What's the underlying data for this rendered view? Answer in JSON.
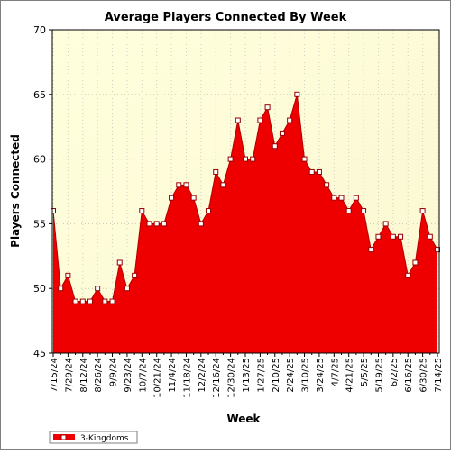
{
  "chart_data": {
    "type": "area",
    "title": "Average Players Connected By Week",
    "xlabel": "Week",
    "ylabel": "Players Connected",
    "ylim": [
      45,
      70
    ],
    "yticks": [
      45,
      50,
      55,
      60,
      65,
      70
    ],
    "grid": true,
    "legend_position": "bottom-left",
    "tick_labels": [
      "7/15/24",
      "7/29/24",
      "8/12/24",
      "8/26/24",
      "9/9/24",
      "9/23/24",
      "10/7/24",
      "10/21/24",
      "11/4/24",
      "11/18/24",
      "12/2/24",
      "12/16/24",
      "12/30/24",
      "1/13/25",
      "1/27/25",
      "2/10/25",
      "2/24/25",
      "3/10/25",
      "3/24/25",
      "4/7/25",
      "4/21/25",
      "5/5/25",
      "5/19/25",
      "6/2/25",
      "6/16/25",
      "6/30/25",
      "7/14/25"
    ],
    "series": [
      {
        "name": "3-Kingdoms",
        "color": "#ee0000",
        "values": [
          56,
          50,
          51,
          49,
          49,
          49,
          50,
          49,
          49,
          52,
          50,
          51,
          56,
          55,
          55,
          55,
          57,
          58,
          58,
          57,
          55,
          56,
          59,
          58,
          60,
          63,
          60,
          60,
          63,
          64,
          61,
          62,
          63,
          65,
          60,
          59,
          59,
          58,
          57,
          57,
          56,
          57,
          56,
          53,
          54,
          55,
          54,
          54,
          51,
          52,
          56,
          54,
          53
        ]
      }
    ]
  }
}
